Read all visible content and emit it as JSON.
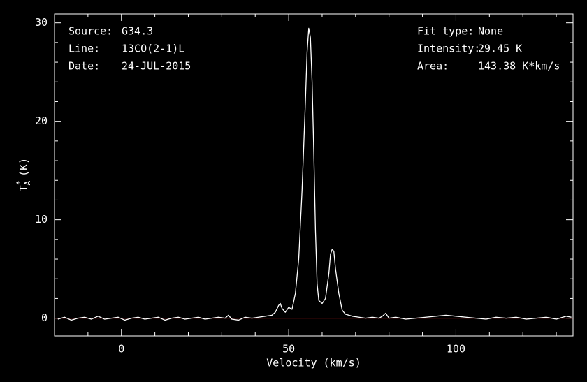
{
  "chart_data": {
    "type": "line",
    "xlabel": "Velocity (km/s)",
    "ylabel": {
      "symbol": "T",
      "superscript": "*",
      "subscript": "A",
      "unit": "(K)"
    },
    "annotations_left": [
      {
        "label": "Source:",
        "value": "G34.3"
      },
      {
        "label": "Line:",
        "value": "13CO(2-1)L"
      },
      {
        "label": "Date:",
        "value": "24-JUL-2015"
      }
    ],
    "annotations_right": [
      {
        "label": "Fit type:",
        "value": "None"
      },
      {
        "label": "Intensity:",
        "value": "29.45 K"
      },
      {
        "label": "Area:",
        "value": "143.38 K*km/s"
      }
    ],
    "xlim": [
      -20,
      135
    ],
    "ylim": [
      -1.8,
      30.9
    ],
    "xticks": [
      0,
      50,
      100
    ],
    "yticks": [
      0,
      10,
      20,
      30
    ],
    "xminorticks": [
      -10,
      10,
      20,
      30,
      40,
      60,
      70,
      80,
      90,
      110,
      120,
      130
    ],
    "yminorticks": [
      2,
      4,
      6,
      8,
      12,
      14,
      16,
      18,
      22,
      24,
      26,
      28
    ],
    "zero_line_color": "#ff2020",
    "series": [
      {
        "color": "#ffffff",
        "x": [
          -19,
          -17,
          -15,
          -13,
          -11,
          -9,
          -7,
          -5,
          -3,
          -1,
          1,
          3,
          5,
          7,
          9,
          11,
          13,
          15,
          17,
          19,
          21,
          23,
          25,
          27,
          29,
          31,
          32,
          33,
          35,
          37,
          39,
          41,
          43,
          45,
          46,
          47,
          47.5,
          48,
          49,
          50,
          51,
          52,
          53,
          54,
          55,
          55.5,
          56,
          56.5,
          57,
          57.5,
          58,
          58.5,
          59,
          60,
          61,
          62,
          62.5,
          63,
          63.5,
          64,
          65,
          66,
          67,
          69,
          71,
          73,
          75,
          77,
          78,
          79,
          80,
          82,
          85,
          88,
          91,
          94,
          97,
          100,
          103,
          106,
          109,
          112,
          115,
          118,
          121,
          124,
          127,
          130,
          133,
          134.5
        ],
        "values": [
          -0.1,
          0.1,
          -0.2,
          0,
          0.1,
          -0.1,
          0.2,
          -0.1,
          0,
          0.1,
          -0.2,
          0,
          0.1,
          -0.1,
          0,
          0.1,
          -0.2,
          0,
          0.1,
          -0.1,
          0,
          0.1,
          -0.1,
          0,
          0.1,
          0,
          0.3,
          -0.1,
          -0.2,
          0.1,
          0,
          0.1,
          0.2,
          0.3,
          0.6,
          1.3,
          1.5,
          1.0,
          0.6,
          1.1,
          0.9,
          2.5,
          6.0,
          13.0,
          22.0,
          27.0,
          29.45,
          28.5,
          24.0,
          17.0,
          9.0,
          3.5,
          1.8,
          1.5,
          2.0,
          4.5,
          6.5,
          7.0,
          6.8,
          5.0,
          2.5,
          0.8,
          0.4,
          0.2,
          0.1,
          0,
          0.1,
          0,
          0.2,
          0.5,
          0,
          0.1,
          -0.1,
          0,
          0.1,
          0.2,
          0.3,
          0.2,
          0.1,
          0,
          -0.1,
          0.1,
          0,
          0.1,
          -0.1,
          0,
          0.1,
          -0.1,
          0.2,
          0.1
        ]
      }
    ]
  }
}
